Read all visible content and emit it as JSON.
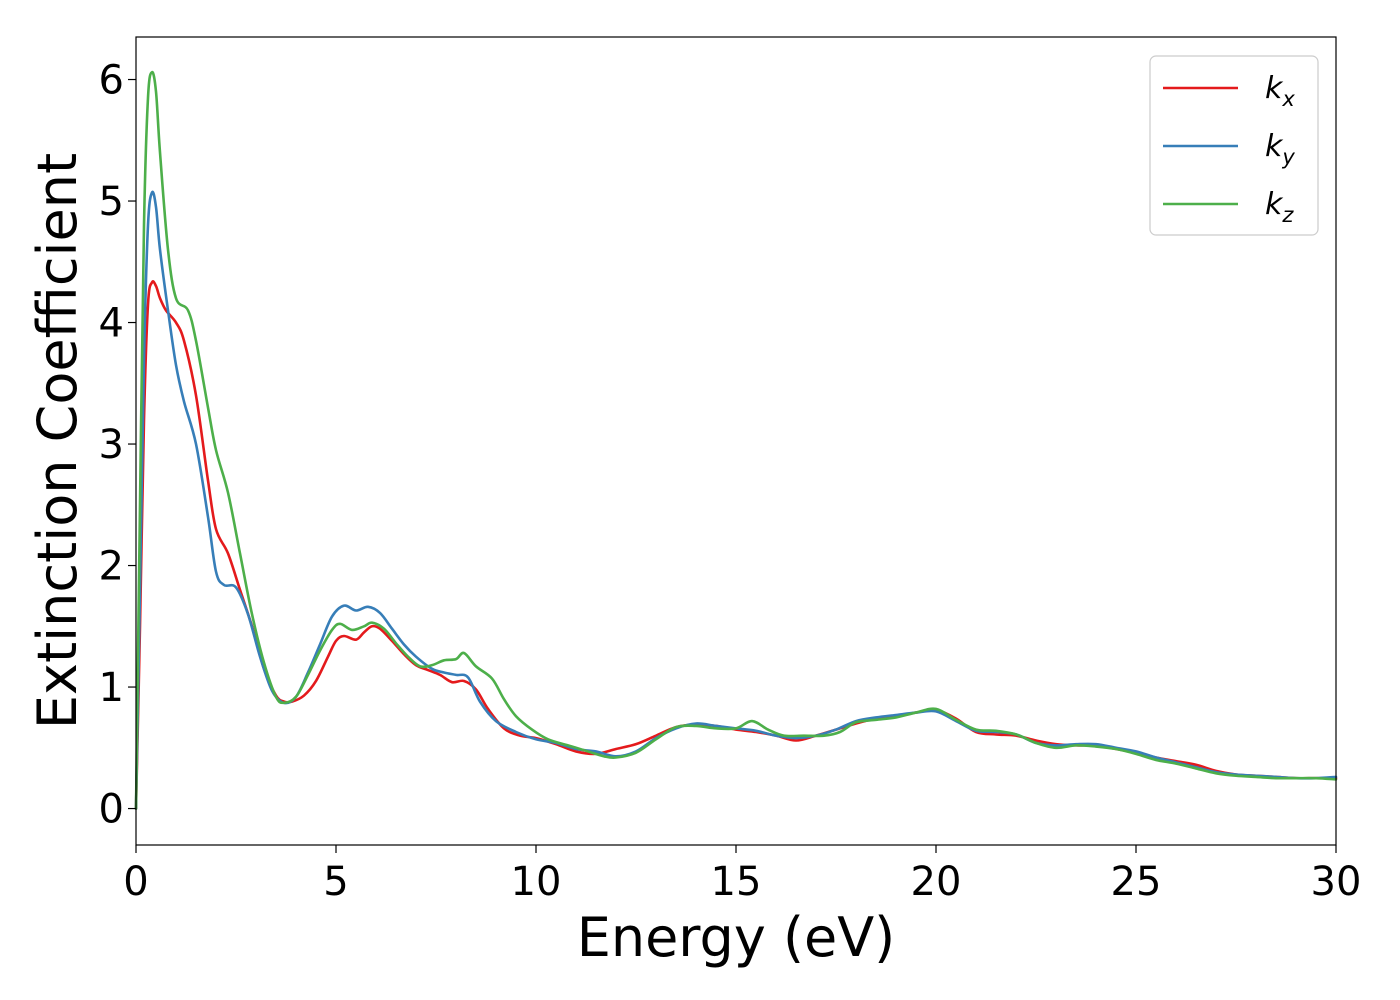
{
  "chart_data": {
    "type": "line",
    "xlabel": "Energy (eV)",
    "ylabel": "Extinction Coefficient",
    "xlim": [
      0,
      30
    ],
    "ylim": [
      -0.3,
      6.35
    ],
    "xticks": [
      0,
      5,
      10,
      15,
      20,
      25,
      30
    ],
    "yticks": [
      0,
      1,
      2,
      3,
      4,
      5,
      6
    ],
    "grid": false,
    "legend_position": "top-right",
    "series": [
      {
        "name": "k_x",
        "label_base": "k",
        "label_sub": "x",
        "color": "#e41a1c",
        "points": [
          [
            0,
            0
          ],
          [
            0.1,
            1.5
          ],
          [
            0.2,
            3.2
          ],
          [
            0.3,
            4.15
          ],
          [
            0.4,
            4.33
          ],
          [
            0.5,
            4.3
          ],
          [
            0.6,
            4.2
          ],
          [
            0.75,
            4.1
          ],
          [
            1.0,
            4.0
          ],
          [
            1.2,
            3.85
          ],
          [
            1.5,
            3.4
          ],
          [
            1.8,
            2.7
          ],
          [
            2.0,
            2.3
          ],
          [
            2.3,
            2.1
          ],
          [
            2.6,
            1.8
          ],
          [
            2.9,
            1.5
          ],
          [
            3.2,
            1.15
          ],
          [
            3.5,
            0.93
          ],
          [
            3.7,
            0.88
          ],
          [
            3.9,
            0.88
          ],
          [
            4.2,
            0.93
          ],
          [
            4.5,
            1.05
          ],
          [
            4.8,
            1.25
          ],
          [
            5.0,
            1.38
          ],
          [
            5.2,
            1.42
          ],
          [
            5.5,
            1.39
          ],
          [
            5.7,
            1.45
          ],
          [
            5.9,
            1.5
          ],
          [
            6.1,
            1.48
          ],
          [
            6.4,
            1.38
          ],
          [
            6.7,
            1.27
          ],
          [
            7.0,
            1.18
          ],
          [
            7.3,
            1.14
          ],
          [
            7.6,
            1.1
          ],
          [
            7.9,
            1.04
          ],
          [
            8.2,
            1.05
          ],
          [
            8.5,
            0.98
          ],
          [
            8.8,
            0.82
          ],
          [
            9.2,
            0.66
          ],
          [
            9.6,
            0.6
          ],
          [
            10.0,
            0.58
          ],
          [
            10.5,
            0.53
          ],
          [
            11.0,
            0.47
          ],
          [
            11.5,
            0.45
          ],
          [
            12.0,
            0.49
          ],
          [
            12.5,
            0.53
          ],
          [
            13.0,
            0.6
          ],
          [
            13.5,
            0.67
          ],
          [
            14.0,
            0.69
          ],
          [
            14.5,
            0.68
          ],
          [
            15.0,
            0.65
          ],
          [
            15.5,
            0.63
          ],
          [
            16.0,
            0.6
          ],
          [
            16.5,
            0.56
          ],
          [
            17.0,
            0.6
          ],
          [
            17.5,
            0.65
          ],
          [
            18.0,
            0.7
          ],
          [
            18.5,
            0.74
          ],
          [
            19.0,
            0.76
          ],
          [
            19.5,
            0.79
          ],
          [
            20.0,
            0.81
          ],
          [
            20.5,
            0.74
          ],
          [
            21.0,
            0.63
          ],
          [
            21.5,
            0.61
          ],
          [
            22.0,
            0.6
          ],
          [
            22.5,
            0.56
          ],
          [
            23.0,
            0.53
          ],
          [
            23.5,
            0.52
          ],
          [
            24.0,
            0.52
          ],
          [
            24.5,
            0.49
          ],
          [
            25.0,
            0.46
          ],
          [
            25.5,
            0.42
          ],
          [
            26.0,
            0.39
          ],
          [
            26.5,
            0.36
          ],
          [
            27.0,
            0.31
          ],
          [
            27.5,
            0.28
          ],
          [
            28.0,
            0.27
          ],
          [
            28.5,
            0.26
          ],
          [
            29.0,
            0.25
          ],
          [
            29.5,
            0.25
          ],
          [
            30.0,
            0.25
          ]
        ]
      },
      {
        "name": "k_y",
        "label_base": "k",
        "label_sub": "y",
        "color": "#377eb8",
        "points": [
          [
            0,
            0
          ],
          [
            0.1,
            1.8
          ],
          [
            0.2,
            3.7
          ],
          [
            0.3,
            4.8
          ],
          [
            0.4,
            5.07
          ],
          [
            0.5,
            4.95
          ],
          [
            0.6,
            4.6
          ],
          [
            0.8,
            4.1
          ],
          [
            1.0,
            3.65
          ],
          [
            1.2,
            3.35
          ],
          [
            1.5,
            3.0
          ],
          [
            1.8,
            2.4
          ],
          [
            2.0,
            1.95
          ],
          [
            2.2,
            1.84
          ],
          [
            2.5,
            1.82
          ],
          [
            2.8,
            1.6
          ],
          [
            3.1,
            1.25
          ],
          [
            3.4,
            0.97
          ],
          [
            3.7,
            0.87
          ],
          [
            4.0,
            0.92
          ],
          [
            4.3,
            1.12
          ],
          [
            4.6,
            1.35
          ],
          [
            4.9,
            1.58
          ],
          [
            5.2,
            1.67
          ],
          [
            5.5,
            1.63
          ],
          [
            5.8,
            1.66
          ],
          [
            6.1,
            1.61
          ],
          [
            6.4,
            1.48
          ],
          [
            6.7,
            1.35
          ],
          [
            7.0,
            1.25
          ],
          [
            7.4,
            1.15
          ],
          [
            7.7,
            1.12
          ],
          [
            8.0,
            1.1
          ],
          [
            8.3,
            1.08
          ],
          [
            8.6,
            0.88
          ],
          [
            9.0,
            0.72
          ],
          [
            9.5,
            0.63
          ],
          [
            10.0,
            0.57
          ],
          [
            10.5,
            0.54
          ],
          [
            11.0,
            0.49
          ],
          [
            11.5,
            0.47
          ],
          [
            12.0,
            0.43
          ],
          [
            12.5,
            0.47
          ],
          [
            13.0,
            0.58
          ],
          [
            13.5,
            0.66
          ],
          [
            14.0,
            0.7
          ],
          [
            14.5,
            0.68
          ],
          [
            15.0,
            0.66
          ],
          [
            15.5,
            0.64
          ],
          [
            16.0,
            0.6
          ],
          [
            16.5,
            0.58
          ],
          [
            17.0,
            0.6
          ],
          [
            17.5,
            0.65
          ],
          [
            18.0,
            0.72
          ],
          [
            18.5,
            0.75
          ],
          [
            19.0,
            0.77
          ],
          [
            19.5,
            0.79
          ],
          [
            20.0,
            0.8
          ],
          [
            20.5,
            0.72
          ],
          [
            21.0,
            0.64
          ],
          [
            21.5,
            0.63
          ],
          [
            22.0,
            0.61
          ],
          [
            22.5,
            0.54
          ],
          [
            23.0,
            0.52
          ],
          [
            23.5,
            0.53
          ],
          [
            24.0,
            0.53
          ],
          [
            24.5,
            0.5
          ],
          [
            25.0,
            0.47
          ],
          [
            25.5,
            0.42
          ],
          [
            26.0,
            0.38
          ],
          [
            26.5,
            0.34
          ],
          [
            27.0,
            0.3
          ],
          [
            27.5,
            0.28
          ],
          [
            28.0,
            0.27
          ],
          [
            28.5,
            0.26
          ],
          [
            29.0,
            0.25
          ],
          [
            29.5,
            0.25
          ],
          [
            30.0,
            0.26
          ]
        ]
      },
      {
        "name": "k_z",
        "label_base": "k",
        "label_sub": "z",
        "color": "#4daf4a",
        "points": [
          [
            0,
            0
          ],
          [
            0.1,
            2.5
          ],
          [
            0.2,
            4.8
          ],
          [
            0.3,
            5.85
          ],
          [
            0.4,
            6.06
          ],
          [
            0.5,
            5.9
          ],
          [
            0.6,
            5.4
          ],
          [
            0.8,
            4.6
          ],
          [
            1.0,
            4.2
          ],
          [
            1.3,
            4.1
          ],
          [
            1.5,
            3.85
          ],
          [
            1.8,
            3.3
          ],
          [
            2.0,
            2.95
          ],
          [
            2.3,
            2.6
          ],
          [
            2.6,
            2.1
          ],
          [
            2.9,
            1.6
          ],
          [
            3.2,
            1.2
          ],
          [
            3.5,
            0.92
          ],
          [
            3.7,
            0.87
          ],
          [
            4.0,
            0.92
          ],
          [
            4.3,
            1.1
          ],
          [
            4.6,
            1.3
          ],
          [
            4.9,
            1.47
          ],
          [
            5.1,
            1.52
          ],
          [
            5.4,
            1.47
          ],
          [
            5.7,
            1.5
          ],
          [
            5.9,
            1.53
          ],
          [
            6.2,
            1.48
          ],
          [
            6.5,
            1.36
          ],
          [
            6.8,
            1.25
          ],
          [
            7.1,
            1.17
          ],
          [
            7.4,
            1.18
          ],
          [
            7.7,
            1.22
          ],
          [
            8.0,
            1.23
          ],
          [
            8.2,
            1.28
          ],
          [
            8.5,
            1.17
          ],
          [
            8.9,
            1.07
          ],
          [
            9.2,
            0.9
          ],
          [
            9.5,
            0.76
          ],
          [
            9.9,
            0.65
          ],
          [
            10.3,
            0.57
          ],
          [
            10.8,
            0.52
          ],
          [
            11.3,
            0.47
          ],
          [
            11.7,
            0.43
          ],
          [
            12.0,
            0.42
          ],
          [
            12.5,
            0.46
          ],
          [
            13.0,
            0.57
          ],
          [
            13.5,
            0.67
          ],
          [
            14.0,
            0.68
          ],
          [
            14.5,
            0.66
          ],
          [
            15.0,
            0.66
          ],
          [
            15.4,
            0.72
          ],
          [
            15.8,
            0.65
          ],
          [
            16.2,
            0.6
          ],
          [
            16.7,
            0.6
          ],
          [
            17.2,
            0.6
          ],
          [
            17.6,
            0.63
          ],
          [
            18.0,
            0.71
          ],
          [
            18.5,
            0.73
          ],
          [
            19.0,
            0.75
          ],
          [
            19.5,
            0.79
          ],
          [
            20.0,
            0.82
          ],
          [
            20.5,
            0.73
          ],
          [
            21.0,
            0.65
          ],
          [
            21.5,
            0.64
          ],
          [
            22.0,
            0.61
          ],
          [
            22.5,
            0.54
          ],
          [
            23.0,
            0.5
          ],
          [
            23.5,
            0.52
          ],
          [
            24.0,
            0.51
          ],
          [
            24.5,
            0.49
          ],
          [
            25.0,
            0.45
          ],
          [
            25.5,
            0.4
          ],
          [
            26.0,
            0.37
          ],
          [
            26.5,
            0.33
          ],
          [
            27.0,
            0.29
          ],
          [
            27.5,
            0.27
          ],
          [
            28.0,
            0.26
          ],
          [
            28.5,
            0.25
          ],
          [
            29.0,
            0.25
          ],
          [
            29.5,
            0.25
          ],
          [
            30.0,
            0.24
          ]
        ]
      }
    ]
  }
}
